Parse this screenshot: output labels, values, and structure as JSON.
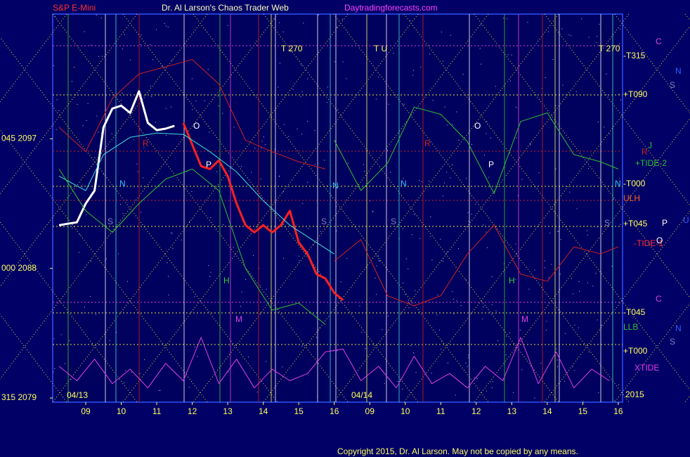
{
  "chart_data": {
    "type": "line",
    "title": "Dr. Al Larson's Chaos Trader Web",
    "subtitle": "S&P E-Mini",
    "source": "Daytradingforecasts.com",
    "copyright": "Copyright 2015, Dr. Al Larson. May not be copied by any means.",
    "xlim": [
      -0.93,
      15.12
    ],
    "ylim": [
      2078.71,
      2105.66
    ],
    "xticks": [
      {
        "value": 0,
        "label": "09"
      },
      {
        "value": 1,
        "label": "10"
      },
      {
        "value": 2,
        "label": "11"
      },
      {
        "value": 3,
        "label": "12"
      },
      {
        "value": 4,
        "label": "13"
      },
      {
        "value": 5,
        "label": "14"
      },
      {
        "value": 6,
        "label": "15"
      },
      {
        "value": 7,
        "label": "16"
      },
      {
        "value": 8,
        "label": "09"
      },
      {
        "value": 9,
        "label": "10"
      },
      {
        "value": 10,
        "label": "11"
      },
      {
        "value": 11,
        "label": "12"
      },
      {
        "value": 12,
        "label": "13"
      },
      {
        "value": 13,
        "label": "14"
      },
      {
        "value": 14,
        "label": "15"
      },
      {
        "value": 15,
        "label": "16"
      }
    ],
    "yticks": [
      {
        "value": 2097,
        "label": "045  2097"
      },
      {
        "value": 2088,
        "label": "000  2088"
      },
      {
        "value": 2079,
        "label": "315  2079"
      }
    ],
    "x": [
      -0.75,
      -0.5,
      -0.25,
      0,
      0.25,
      0.5,
      0.75,
      1,
      1.25,
      1.5,
      1.75,
      2,
      2.25,
      2.5,
      2.75,
      3,
      3.25,
      3.5,
      3.75,
      4,
      4.25,
      4.5,
      4.75,
      5,
      5.25,
      5.5,
      5.75,
      6,
      6.25,
      6.5,
      6.75,
      7,
      7.25
    ],
    "series": [
      {
        "color": "#ffffff",
        "width": 3,
        "values": [
          2091.0,
          2091.1,
          2091.2,
          2092.5,
          2093.4,
          2097.8,
          2099.1,
          2099.3,
          2098.8,
          2100.3,
          2098.1,
          2097.6,
          2097.7,
          2097.9,
          null,
          null,
          null,
          null,
          null,
          null,
          null,
          null,
          null,
          null,
          null,
          null,
          null,
          null,
          null,
          null,
          null,
          null,
          null
        ]
      },
      {
        "color": "#ff2020",
        "width": 3,
        "values": [
          null,
          null,
          null,
          null,
          null,
          null,
          null,
          null,
          null,
          null,
          null,
          null,
          null,
          null,
          2098.1,
          2096.6,
          2095.1,
          2094.9,
          2095.5,
          2094.4,
          2092.5,
          2091.0,
          2090.5,
          2091.0,
          2090.5,
          2091.0,
          2092.0,
          2089.8,
          2089.0,
          2087.6,
          2087.3,
          2086.3,
          2085.8
        ]
      },
      {
        "color": "#40e0e0",
        "width": 1,
        "x": [
          -0.75,
          0,
          0.5,
          1.25,
          2,
          2.75,
          3.5,
          4.25,
          5,
          5.75,
          6.5,
          7
        ],
        "values": [
          2094.4,
          2093.4,
          2095.9,
          2097.1,
          2097.4,
          2097.3,
          2096.1,
          2094.7,
          2092.7,
          2091.0,
          2089.8,
          2089.0
        ]
      },
      {
        "color": "#30c030",
        "width": 1,
        "x": [
          -0.75,
          0,
          0.75,
          1.5,
          2.25,
          3,
          3.75,
          4.5,
          5.25,
          6,
          6.75
        ],
        "values": [
          2094.9,
          2092.0,
          2090.5,
          2092.5,
          2094.2,
          2094.9,
          2093.4,
          2088.0,
          2085.1,
          2085.6,
          2084.1
        ]
      },
      {
        "color": "#30c030",
        "width": 1,
        "x": [
          7,
          7.75,
          8.5,
          9.25,
          10,
          10.75,
          11.5,
          12.25,
          13,
          13.75,
          14.5,
          15
        ],
        "values": [
          2096.9,
          2093.4,
          2095.3,
          2099.2,
          2098.7,
          2096.8,
          2093.2,
          2098.2,
          2098.8,
          2095.9,
          2095.4,
          2094.9
        ]
      },
      {
        "color": "#d02020",
        "width": 1,
        "x": [
          -0.75,
          0,
          0.75,
          1.5,
          2.25,
          3,
          3.75,
          4.5,
          5.25,
          6,
          6.75
        ],
        "values": [
          2097.8,
          2096.1,
          2099.8,
          2101.5,
          2102.0,
          2102.5,
          2100.8,
          2096.9,
          2096.1,
          2095.4,
          2094.9
        ]
      },
      {
        "color": "#d02020",
        "width": 1,
        "x": [
          7,
          7.75,
          8.5,
          9.25,
          10,
          10.75,
          11.5,
          12.25,
          13,
          13.75,
          14.5,
          15
        ],
        "values": [
          2088.5,
          2090.0,
          2086.1,
          2085.4,
          2086.1,
          2089.0,
          2091.0,
          2087.6,
          2087.1,
          2089.5,
          2089.0,
          2089.5
        ]
      },
      {
        "color": "#e040e0",
        "width": 1,
        "x": [
          -0.75,
          -0.25,
          0.25,
          0.75,
          1.25,
          1.75,
          2.25,
          2.75,
          3.25,
          3.75,
          4.25,
          4.75,
          5.25,
          5.75,
          6.25,
          6.75,
          7.25,
          7.75,
          8.25,
          8.75,
          9.25,
          9.75,
          10.25,
          10.75,
          11.25,
          11.75,
          12.25,
          12.75,
          13.25,
          13.75,
          14.25,
          14.75
        ],
        "values": [
          2081.2,
          2080.2,
          2081.7,
          2080.0,
          2081.0,
          2079.7,
          2081.4,
          2080.2,
          2083.2,
          2080.0,
          2081.7,
          2079.7,
          2081.0,
          2080.2,
          2080.7,
          2082.2,
          2082.4,
          2080.2,
          2081.2,
          2079.7,
          2081.9,
          2080.0,
          2080.7,
          2079.7,
          2081.2,
          2080.2,
          2083.2,
          2080.0,
          2082.2,
          2079.7,
          2081.0,
          2080.2
        ]
      }
    ],
    "annotations": [
      {
        "text": "T   270",
        "color": "#ffff60"
      },
      {
        "text": "T   U",
        "color": "#ffff60"
      },
      {
        "text": "T   270",
        "color": "#ffff60"
      },
      {
        "text": "O",
        "color": "#ffffff"
      },
      {
        "text": "O",
        "color": "#ffffff"
      },
      {
        "text": "N",
        "color": "#30c0ff"
      },
      {
        "text": "N",
        "color": "#30c0ff"
      },
      {
        "text": "N",
        "color": "#30c0ff"
      },
      {
        "text": "N",
        "color": "#30c0ff"
      },
      {
        "text": "S",
        "color": "#8080c0"
      },
      {
        "text": "S",
        "color": "#8080c0"
      },
      {
        "text": "S",
        "color": "#8080c0"
      },
      {
        "text": "S",
        "color": "#8080c0"
      },
      {
        "text": "H",
        "color": "#30d030"
      },
      {
        "text": "H",
        "color": "#30d030"
      },
      {
        "text": "M",
        "color": "#e040e0"
      },
      {
        "text": "M",
        "color": "#e040e0"
      },
      {
        "text": "P",
        "color": "#ffffff"
      },
      {
        "text": "P",
        "color": "#ffffff"
      },
      {
        "text": "R",
        "color": "#d02020"
      },
      {
        "text": "R",
        "color": "#d02020"
      },
      {
        "text": "04/13",
        "color": "#ffff60"
      },
      {
        "text": "04/14",
        "color": "#ffff60"
      }
    ],
    "right_labels": [
      {
        "text": "C",
        "color": "#e040e0"
      },
      {
        "text": "N",
        "color": "#3060ff"
      },
      {
        "text": "S",
        "color": "#8080c0"
      },
      {
        "text": "-T315",
        "color": "#ffff60"
      },
      {
        "text": "+T090",
        "color": "#ffff60"
      },
      {
        "text": "R",
        "color": "#d02020"
      },
      {
        "text": "J",
        "color": "#30c030"
      },
      {
        "text": "+TIDE-2",
        "color": "#30c030"
      },
      {
        "text": "-T000",
        "color": "#ffff60"
      },
      {
        "text": "ULH",
        "color": "#ff6020"
      },
      {
        "text": "+T045",
        "color": "#ffff60"
      },
      {
        "text": "P",
        "color": "#ffffff"
      },
      {
        "text": "U",
        "color": "#3060ff"
      },
      {
        "text": "-TIDE-1",
        "color": "#ff3030"
      },
      {
        "text": "O",
        "color": "#ffffff"
      },
      {
        "text": "C",
        "color": "#e040e0"
      },
      {
        "text": "-T045",
        "color": "#ffff60"
      },
      {
        "text": "LLB",
        "color": "#30c030"
      },
      {
        "text": "N",
        "color": "#3060ff"
      },
      {
        "text": "S",
        "color": "#8080c0"
      },
      {
        "text": "+T000",
        "color": "#ffff60"
      },
      {
        "text": "XTIDE",
        "color": "#e040e0"
      },
      {
        "text": "2015",
        "color": "#ffff60"
      }
    ]
  }
}
